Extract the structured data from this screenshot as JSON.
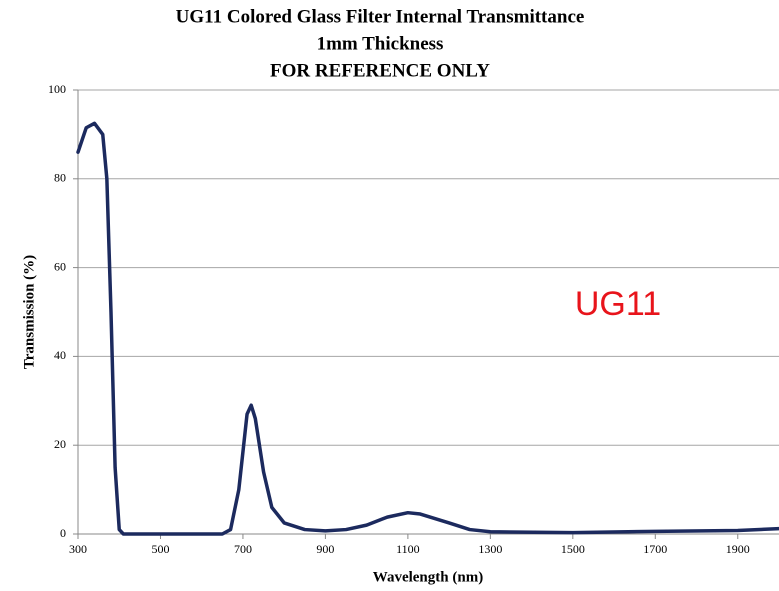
{
  "chart_data": {
    "type": "line",
    "title": "UG11 Colored Glass Filter Internal Transmittance",
    "subtitle": "1mm Thickness",
    "note": "FOR REFERENCE ONLY",
    "annotation": "UG11",
    "x_label": "Wavelength (nm)",
    "y_label": "Transmission (%)",
    "x": [
      300,
      320,
      340,
      360,
      370,
      380,
      390,
      400,
      410,
      500,
      600,
      650,
      670,
      690,
      710,
      720,
      730,
      750,
      770,
      800,
      850,
      900,
      950,
      1000,
      1050,
      1100,
      1130,
      1200,
      1250,
      1300,
      1500,
      1700,
      1900,
      2000
    ],
    "series": [
      {
        "name": "UG11",
        "color": "#1c2a5e",
        "values": [
          86,
          91.5,
          92.5,
          90,
          80,
          50,
          15,
          1,
          0,
          0,
          0,
          0,
          1,
          10,
          27,
          29,
          26,
          14,
          6,
          2.5,
          1,
          0.7,
          1,
          2,
          3.8,
          4.8,
          4.5,
          2.5,
          1,
          0.5,
          0.3,
          0.6,
          0.8,
          1.2
        ]
      }
    ],
    "xlim": [
      300,
      2000
    ],
    "xticks": [
      300,
      500,
      700,
      900,
      1100,
      1300,
      1500,
      1700,
      1900
    ],
    "ylim": [
      0,
      100
    ],
    "yticks": [
      0,
      20,
      40,
      60,
      80,
      100
    ],
    "grid": true
  }
}
